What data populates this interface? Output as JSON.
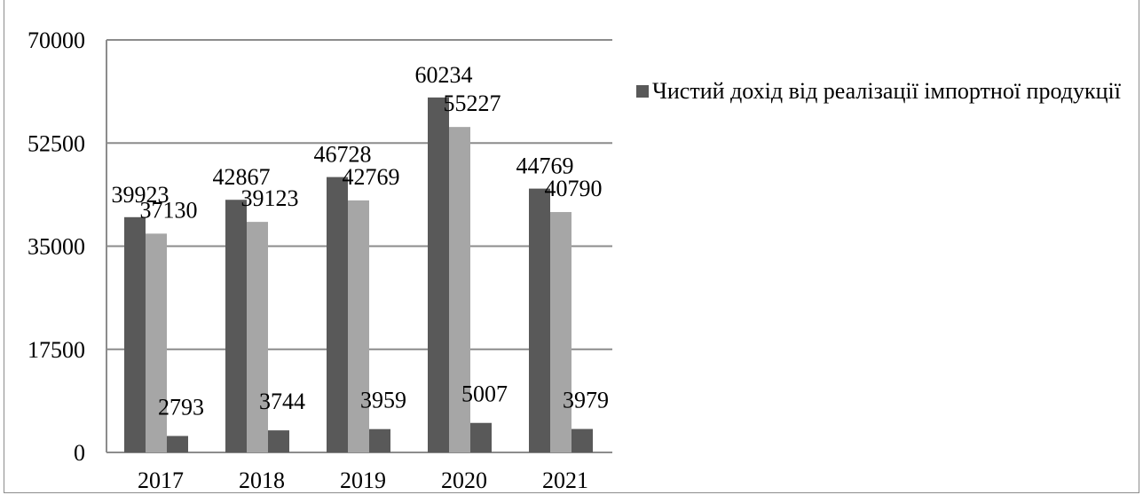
{
  "chart_data": {
    "type": "bar",
    "categories": [
      "2017",
      "2018",
      "2019",
      "2020",
      "2021"
    ],
    "series": [
      {
        "name": "",
        "values": [
          39923,
          42867,
          46728,
          60234,
          44769
        ],
        "color": "#595959"
      },
      {
        "name": "",
        "values": [
          37130,
          39123,
          42769,
          55227,
          40790
        ],
        "color": "#a6a6a6"
      },
      {
        "name": "Чистий дохід від реалізації імпортної продукції",
        "values": [
          2793,
          3744,
          3959,
          5007,
          3979
        ],
        "color": "#595959"
      }
    ],
    "y_ticks": [
      "0",
      "17500",
      "35000",
      "52500",
      "70000"
    ],
    "ylim": [
      0,
      70000
    ],
    "grid": true,
    "legend": {
      "position": "right",
      "label": "Чистий дохід від реалізації імпортної продукції"
    },
    "title": "",
    "xlabel": "",
    "ylabel": ""
  }
}
